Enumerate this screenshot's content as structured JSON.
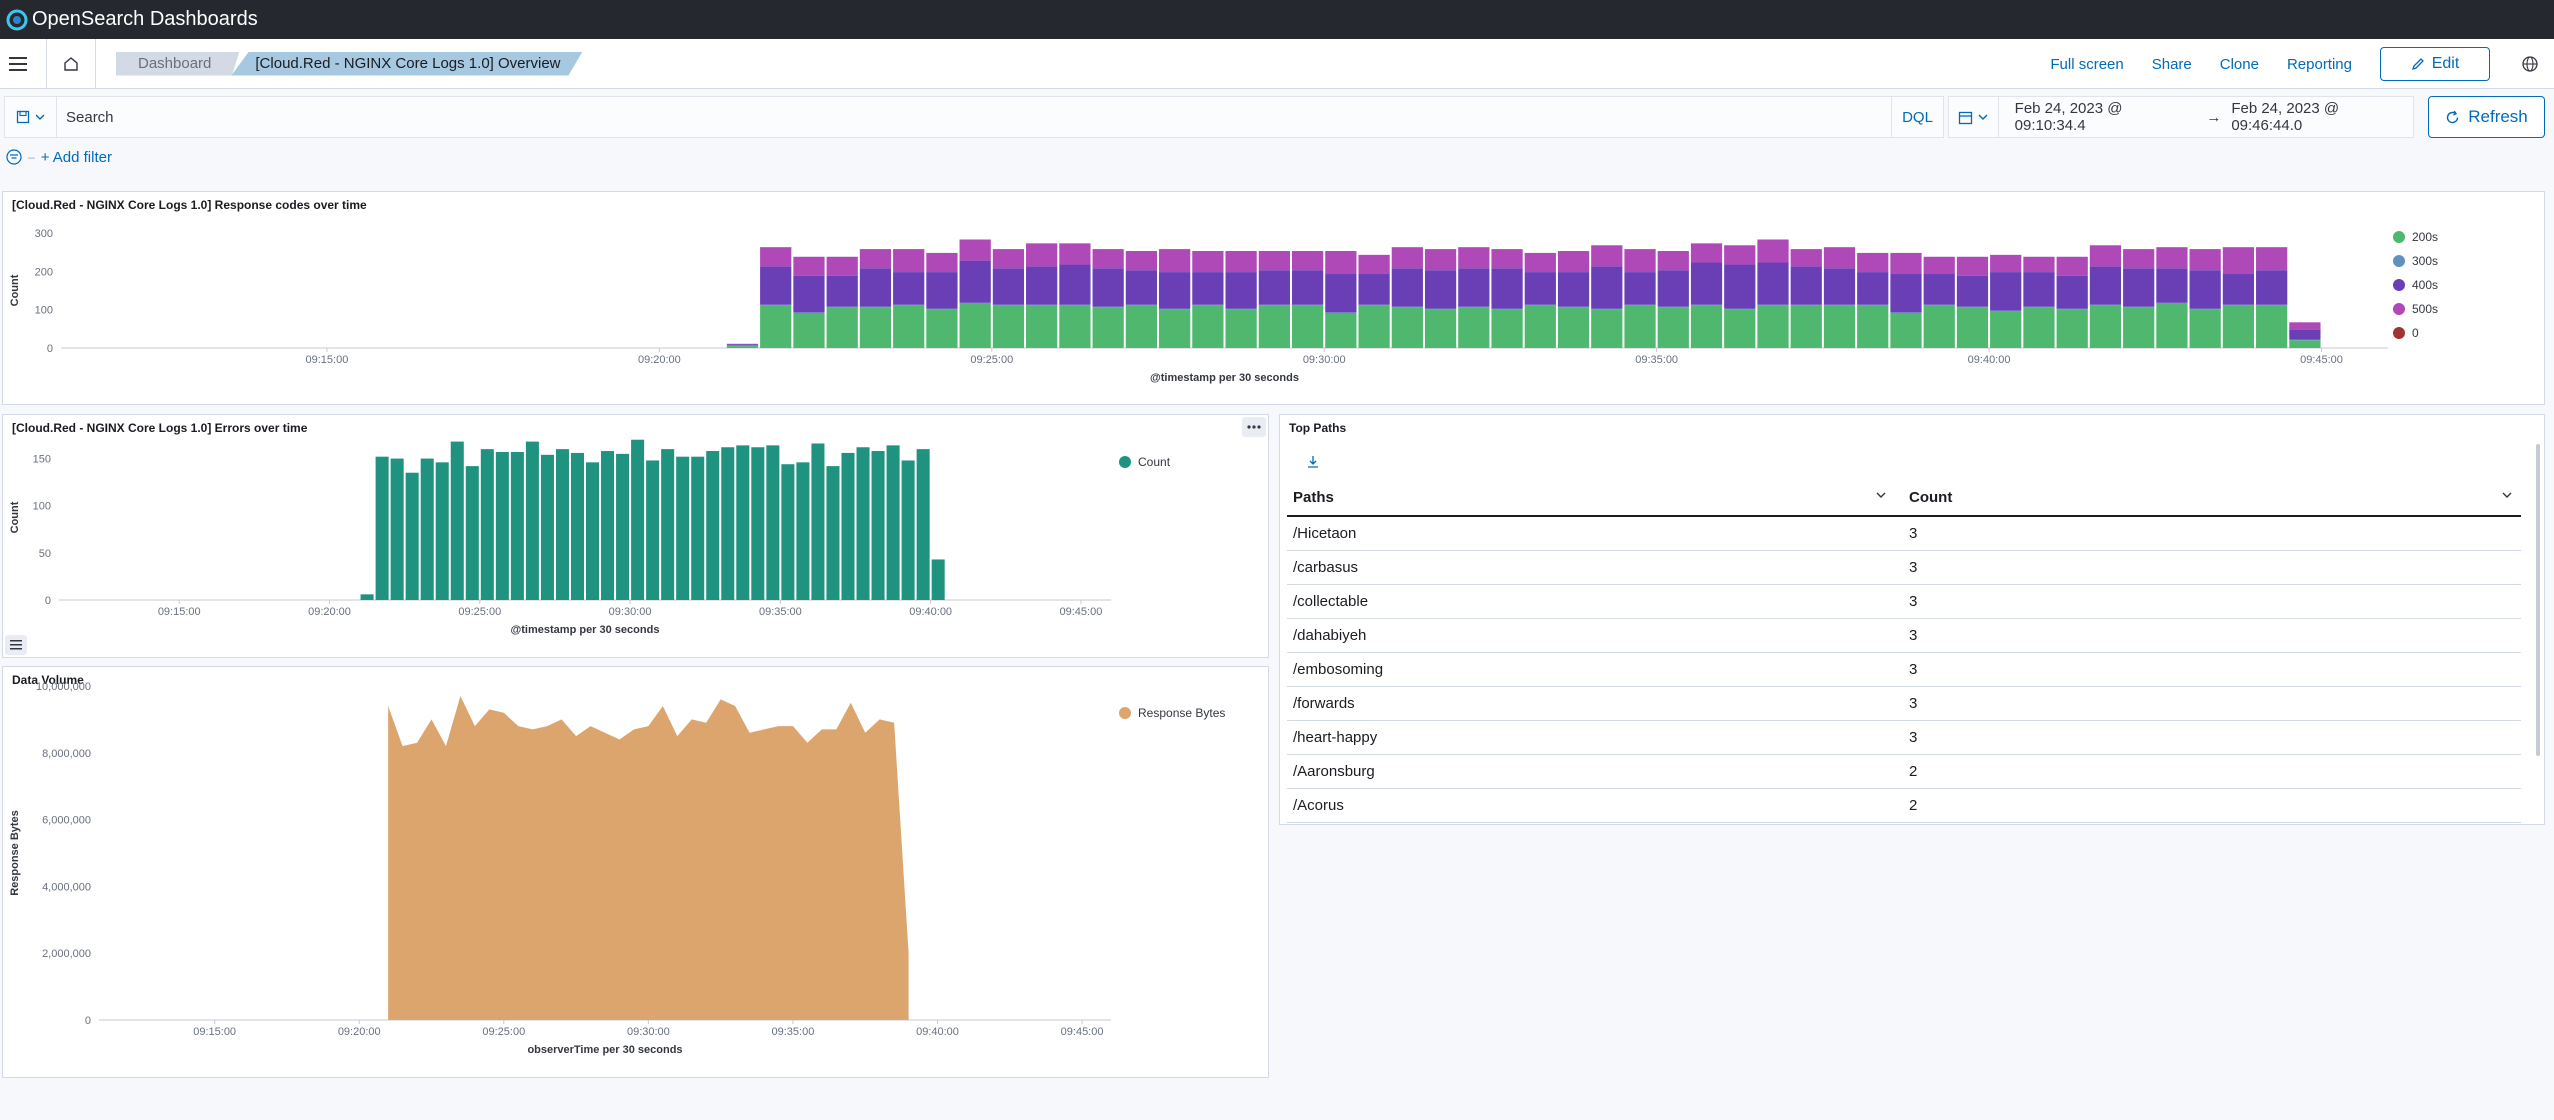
{
  "header": {
    "brand": "OpenSearch Dashboards"
  },
  "nav": {
    "breadcrumbs": [
      "Dashboard",
      "[Cloud.Red - NGINX Core Logs 1.0] Overview"
    ],
    "links": [
      "Full screen",
      "Share",
      "Clone",
      "Reporting"
    ],
    "edit_label": "Edit"
  },
  "query": {
    "placeholder": "Search",
    "language": "DQL",
    "start": "Feb 24, 2023 @ 09:10:34.4",
    "arrow": "→",
    "end": "Feb 24, 2023 @ 09:46:44.0",
    "refresh_label": "Refresh"
  },
  "filters": {
    "add_label": "+ Add filter"
  },
  "panels": {
    "response_codes": {
      "title": "[Cloud.Red - NGINX Core Logs 1.0] Response codes over time",
      "xlabel": "@timestamp per 30 seconds",
      "ylabel": "Count"
    },
    "errors": {
      "title": "[Cloud.Red - NGINX Core Logs 1.0] Errors over time",
      "xlabel": "@timestamp per 30 seconds",
      "ylabel": "Count"
    },
    "volume": {
      "title": "Data Volume",
      "xlabel": "observerTime per 30 seconds",
      "ylabel": "Response Bytes"
    },
    "top_paths": {
      "title": "Top Paths",
      "columns": [
        "Paths",
        "Count"
      ],
      "rows": [
        [
          "/Hicetaon",
          "3"
        ],
        [
          "/carbasus",
          "3"
        ],
        [
          "/collectable",
          "3"
        ],
        [
          "/dahabiyeh",
          "3"
        ],
        [
          "/embosoming",
          "3"
        ],
        [
          "/forwards",
          "3"
        ],
        [
          "/heart-happy",
          "3"
        ],
        [
          "/Aaronsburg",
          "2"
        ],
        [
          "/Acorus",
          "2"
        ]
      ]
    }
  },
  "colors": {
    "c200": "#54b399",
    "c200b": "#4fb86e",
    "c300": "#6092c0",
    "c400": "#6a3fb5",
    "c500": "#b049b8",
    "c0": "#9e3533",
    "teal": "#209280",
    "orange": "#dda56e",
    "accent": "#006bb8"
  },
  "chart_data": [
    {
      "type": "bar",
      "stacked": true,
      "title": "[Cloud.Red - NGINX Core Logs 1.0] Response codes over time",
      "xlabel": "@timestamp per 30 seconds",
      "ylabel": "Count",
      "x_ticks": [
        "09:15:00",
        "09:20:00",
        "09:25:00",
        "09:30:00",
        "09:35:00",
        "09:40:00",
        "09:45:00"
      ],
      "y_ticks": [
        0,
        100,
        200,
        300
      ],
      "ylim": [
        0,
        300
      ],
      "x_start": "09:11:00",
      "bin_seconds": 30,
      "legend": [
        "200s",
        "300s",
        "400s",
        "500s",
        "0"
      ],
      "legend_position": "right",
      "series": [
        {
          "name": "200s",
          "values": [
            0,
            0,
            0,
            0,
            0,
            0,
            0,
            0,
            0,
            0,
            0,
            0,
            0,
            0,
            0,
            0,
            0,
            0,
            0,
            0,
            5,
            110,
            90,
            105,
            105,
            110,
            100,
            115,
            110,
            110,
            110,
            105,
            110,
            100,
            110,
            100,
            110,
            110,
            90,
            110,
            105,
            100,
            105,
            100,
            110,
            105,
            100,
            110,
            105,
            110,
            100,
            110,
            110,
            110,
            110,
            90,
            110,
            105,
            95,
            105,
            100,
            110,
            105,
            115,
            100,
            110,
            110,
            20
          ]
        },
        {
          "name": "300s",
          "values": [
            0,
            0,
            0,
            0,
            0,
            0,
            0,
            0,
            0,
            0,
            0,
            0,
            0,
            0,
            0,
            0,
            0,
            0,
            0,
            0,
            2,
            3,
            3,
            3,
            3,
            3,
            3,
            3,
            3,
            3,
            3,
            3,
            3,
            3,
            3,
            3,
            3,
            3,
            3,
            3,
            3,
            3,
            3,
            3,
            3,
            3,
            3,
            3,
            3,
            3,
            3,
            3,
            3,
            3,
            3,
            3,
            3,
            3,
            3,
            3,
            3,
            3,
            3,
            3,
            3,
            3,
            3,
            2
          ]
        },
        {
          "name": "400s",
          "values": [
            0,
            0,
            0,
            0,
            0,
            0,
            0,
            0,
            0,
            0,
            0,
            0,
            0,
            0,
            0,
            0,
            0,
            0,
            0,
            0,
            3,
            100,
            95,
            80,
            100,
            85,
            95,
            110,
            95,
            100,
            105,
            100,
            90,
            95,
            85,
            95,
            90,
            90,
            100,
            80,
            100,
            100,
            100,
            105,
            85,
            90,
            110,
            85,
            95,
            110,
            115,
            110,
            100,
            95,
            85,
            100,
            80,
            80,
            100,
            90,
            85,
            100,
            100,
            90,
            100,
            80,
            90,
            25
          ]
        },
        {
          "name": "500s",
          "values": [
            0,
            0,
            0,
            0,
            0,
            0,
            0,
            0,
            0,
            0,
            0,
            0,
            0,
            0,
            0,
            0,
            0,
            0,
            0,
            0,
            1,
            50,
            50,
            50,
            50,
            60,
            50,
            55,
            50,
            60,
            55,
            50,
            50,
            60,
            55,
            55,
            50,
            50,
            60,
            50,
            55,
            55,
            55,
            50,
            50,
            55,
            55,
            60,
            50,
            50,
            50,
            60,
            45,
            55,
            50,
            55,
            45,
            50,
            45,
            40,
            50,
            55,
            50,
            55,
            55,
            70,
            60,
            20
          ]
        },
        {
          "name": "0",
          "values": [
            0,
            0,
            0,
            0,
            0,
            0,
            0,
            0,
            0,
            0,
            0,
            0,
            0,
            0,
            0,
            0,
            0,
            0,
            0,
            0,
            0,
            0,
            0,
            0,
            0,
            0,
            0,
            0,
            0,
            0,
            0,
            0,
            0,
            0,
            0,
            0,
            0,
            0,
            0,
            0,
            0,
            0,
            0,
            0,
            0,
            0,
            0,
            0,
            0,
            0,
            0,
            0,
            0,
            0,
            0,
            0,
            0,
            0,
            0,
            0,
            0,
            0,
            0,
            0,
            0,
            0,
            0,
            0
          ]
        }
      ]
    },
    {
      "type": "bar",
      "title": "[Cloud.Red - NGINX Core Logs 1.0] Errors over time",
      "xlabel": "@timestamp per 30 seconds",
      "ylabel": "Count",
      "x_ticks": [
        "09:15:00",
        "09:20:00",
        "09:25:00",
        "09:30:00",
        "09:35:00",
        "09:40:00",
        "09:45:00"
      ],
      "y_ticks": [
        0,
        50,
        100,
        150
      ],
      "ylim": [
        0,
        175
      ],
      "x_start": "09:11:00",
      "bin_seconds": 30,
      "legend": [
        "Count"
      ],
      "legend_position": "top-right",
      "series": [
        {
          "name": "Count",
          "values": [
            0,
            0,
            0,
            0,
            0,
            0,
            0,
            0,
            0,
            0,
            0,
            0,
            0,
            0,
            0,
            0,
            0,
            0,
            0,
            0,
            6,
            152,
            150,
            135,
            150,
            146,
            168,
            142,
            160,
            157,
            157,
            168,
            154,
            160,
            156,
            146,
            158,
            155,
            170,
            148,
            160,
            152,
            152,
            158,
            162,
            164,
            162,
            164,
            144,
            146,
            166,
            142,
            156,
            162,
            158,
            164,
            148,
            160,
            43
          ]
        }
      ]
    },
    {
      "type": "area",
      "title": "Data Volume",
      "xlabel": "observerTime per 30 seconds",
      "ylabel": "Response Bytes",
      "x_ticks": [
        "09:15:00",
        "09:20:00",
        "09:25:00",
        "09:30:00",
        "09:35:00",
        "09:40:00",
        "09:45:00"
      ],
      "y_ticks": [
        "0",
        "2,000,000",
        "4,000,000",
        "6,000,000",
        "8,000,000",
        "10,000,000"
      ],
      "ylim": [
        0,
        10000000
      ],
      "x_start": "09:11:00",
      "bin_seconds": 30,
      "legend": [
        "Response Bytes"
      ],
      "legend_position": "top-right",
      "series": [
        {
          "name": "Response Bytes",
          "values": [
            0,
            0,
            0,
            0,
            0,
            0,
            0,
            0,
            0,
            0,
            0,
            0,
            0,
            0,
            0,
            0,
            0,
            0,
            0,
            0,
            9400000,
            8200000,
            8300000,
            9000000,
            8200000,
            9700000,
            8800000,
            9300000,
            9200000,
            8800000,
            8700000,
            8800000,
            9000000,
            8500000,
            8800000,
            8600000,
            8400000,
            8700000,
            8800000,
            9400000,
            8500000,
            9000000,
            8900000,
            9600000,
            9400000,
            8600000,
            8700000,
            8800000,
            8800000,
            8300000,
            8700000,
            8700000,
            9500000,
            8600000,
            9000000,
            8900000,
            2000000
          ]
        }
      ]
    }
  ]
}
